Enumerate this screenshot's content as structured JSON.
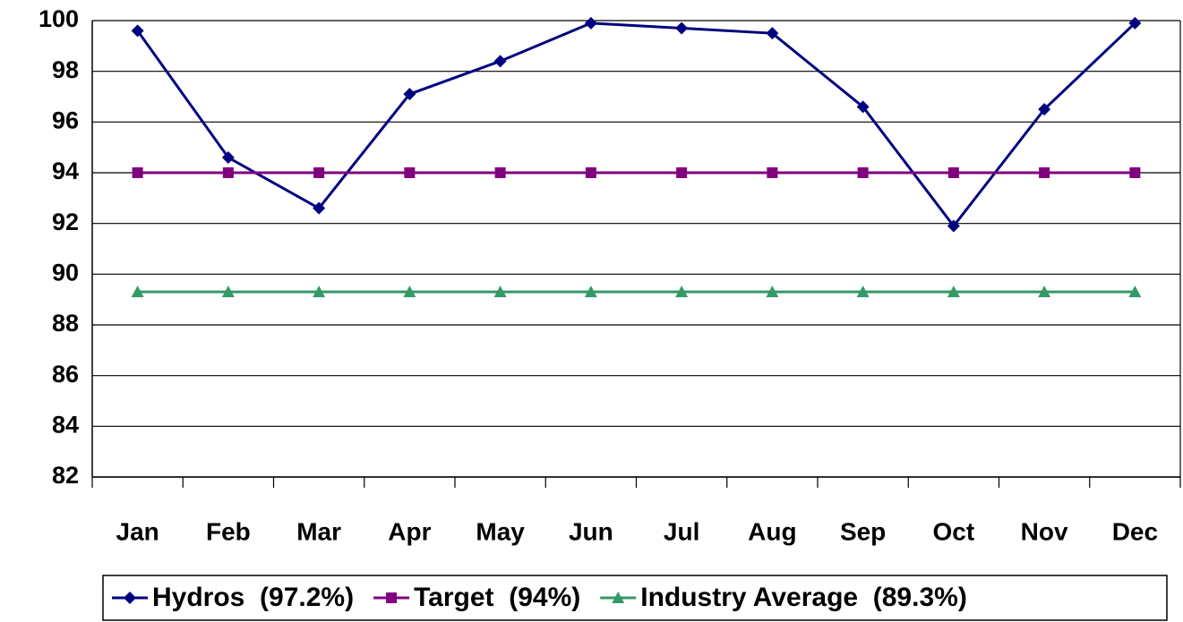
{
  "chart_data": {
    "type": "line",
    "categories": [
      "Jan",
      "Feb",
      "Mar",
      "Apr",
      "May",
      "Jun",
      "Jul",
      "Aug",
      "Sep",
      "Oct",
      "Nov",
      "Dec"
    ],
    "series": [
      {
        "name": "Hydros  (97.2%)",
        "color": "#000080",
        "marker": "diamond",
        "values": [
          99.6,
          94.6,
          92.6,
          97.1,
          98.4,
          99.9,
          99.7,
          99.5,
          96.6,
          91.9,
          96.5,
          99.9
        ]
      },
      {
        "name": "Target  (94%)",
        "color": "#800080",
        "marker": "square",
        "values": [
          94,
          94,
          94,
          94,
          94,
          94,
          94,
          94,
          94,
          94,
          94,
          94
        ]
      },
      {
        "name": "Industry Average  (89.3%)",
        "color": "#339966",
        "marker": "triangle",
        "values": [
          89.3,
          89.3,
          89.3,
          89.3,
          89.3,
          89.3,
          89.3,
          89.3,
          89.3,
          89.3,
          89.3,
          89.3
        ]
      }
    ],
    "ylim": [
      82,
      100
    ],
    "yticks": [
      82,
      84,
      86,
      88,
      90,
      92,
      94,
      96,
      98,
      100
    ],
    "grid": true,
    "legend": "bottom"
  }
}
